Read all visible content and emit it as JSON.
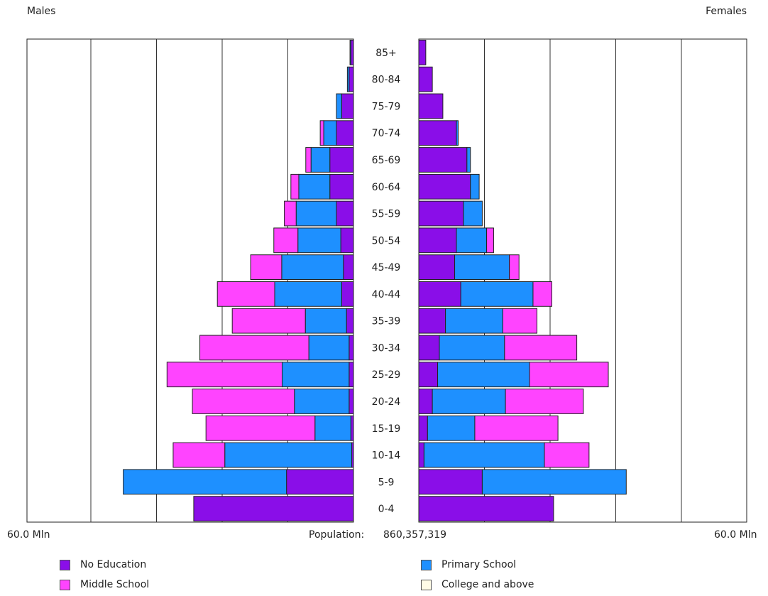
{
  "header": {
    "males_label": "Males",
    "females_label": "Females"
  },
  "footer": {
    "axis_left": "60.0 Mln",
    "axis_right": "60.0 Mln",
    "population_label": "Population:",
    "population_value": "860,357,319"
  },
  "colors": {
    "no_education": "#8a0ee8",
    "primary_school": "#1e90ff",
    "middle_school": "#ff44ff",
    "college": "#fffce6"
  },
  "chart_data": {
    "type": "bar",
    "orientation": "horizontal-population-pyramid",
    "units": "Mln",
    "xlim_each_side": [
      0,
      60
    ],
    "grid": true,
    "legend_position": "bottom",
    "categories": [
      "85+",
      "80-84",
      "75-79",
      "70-74",
      "65-69",
      "60-64",
      "55-59",
      "50-54",
      "45-49",
      "40-44",
      "35-39",
      "30-34",
      "25-29",
      "20-24",
      "15-19",
      "10-14",
      "5-9",
      "0-4"
    ],
    "series": [
      {
        "name": "No Education",
        "color_key": "no_education",
        "males": [
          0.6,
          1.0,
          2.7,
          3.9,
          5.4,
          5.4,
          3.9,
          2.9,
          2.3,
          2.7,
          1.6,
          1.0,
          1.0,
          1.0,
          0.6,
          0.4,
          15.3,
          36.5
        ],
        "females": [
          1.6,
          3.1,
          5.5,
          8.6,
          11.0,
          11.8,
          10.2,
          8.6,
          8.2,
          9.6,
          6.1,
          4.7,
          4.3,
          3.1,
          2.0,
          1.2,
          14.5,
          30.8
        ]
      },
      {
        "name": "Primary School",
        "color_key": "primary_school",
        "males": [
          0.2,
          0.4,
          1.2,
          2.9,
          4.3,
          7.1,
          9.2,
          9.8,
          14.1,
          15.3,
          9.4,
          9.2,
          15.3,
          12.5,
          8.2,
          29.0,
          37.3,
          0
        ],
        "females": [
          0.0,
          0.0,
          0.0,
          0.4,
          0.8,
          2.0,
          4.3,
          6.9,
          12.5,
          16.5,
          13.1,
          14.9,
          21.0,
          16.7,
          10.8,
          27.5,
          32.9,
          0
        ]
      },
      {
        "name": "Middle School",
        "color_key": "middle_school",
        "males": [
          0,
          0,
          0,
          0.8,
          1.2,
          1.8,
          2.7,
          5.5,
          7.1,
          13.1,
          16.7,
          24.9,
          26.3,
          23.3,
          24.9,
          11.8,
          0,
          0
        ],
        "females": [
          0,
          0,
          0,
          0,
          0,
          0,
          0,
          1.6,
          2.2,
          4.3,
          7.8,
          16.5,
          18.0,
          17.8,
          19.0,
          10.2,
          0,
          0
        ]
      },
      {
        "name": "College and above",
        "color_key": "college",
        "males": [
          0,
          0,
          0,
          0,
          0,
          0,
          0,
          0,
          0,
          0,
          0,
          0,
          0,
          0,
          0,
          0,
          0,
          0
        ],
        "females": [
          0,
          0,
          0,
          0,
          0,
          0,
          0,
          0,
          0,
          0,
          0,
          0,
          0,
          0,
          0,
          0,
          0,
          0
        ]
      }
    ]
  }
}
